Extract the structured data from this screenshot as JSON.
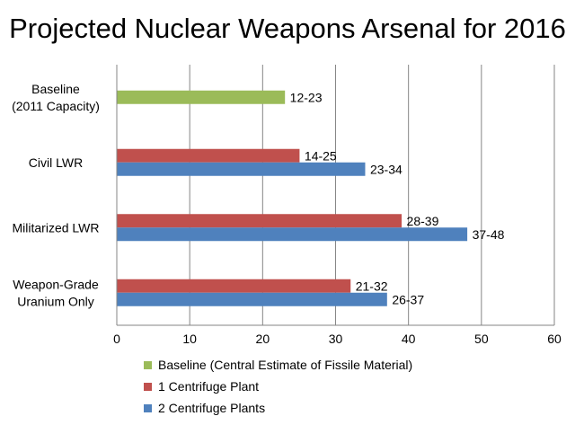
{
  "chart_data": {
    "type": "bar",
    "orientation": "horizontal",
    "title": "Projected Nuclear Weapons Arsenal for 2016",
    "categories": [
      [
        "Baseline",
        "(2011 Capacity)"
      ],
      [
        "Civil LWR"
      ],
      [
        "Militarized LWR"
      ],
      [
        "Weapon-Grade",
        "Uranium Only"
      ]
    ],
    "series": [
      {
        "name": "Baseline (Central Estimate of Fissile Material)",
        "color": "#9bbb59",
        "values": [
          23,
          null,
          null,
          null
        ],
        "labels": [
          "12-23",
          null,
          null,
          null
        ]
      },
      {
        "name": "1 Centrifuge Plant",
        "color": "#c0504d",
        "values": [
          null,
          25,
          39,
          32
        ],
        "labels": [
          null,
          "14-25",
          "28-39",
          "21-32"
        ]
      },
      {
        "name": "2 Centrifuge Plants",
        "color": "#4f81bd",
        "values": [
          null,
          34,
          48,
          37
        ],
        "labels": [
          null,
          "23-34",
          "37-48",
          "26-37"
        ]
      }
    ],
    "xlim": [
      0,
      60
    ],
    "xticks": [
      0,
      10,
      20,
      30,
      40,
      50,
      60
    ],
    "grid": true,
    "legend_position": "bottom"
  }
}
